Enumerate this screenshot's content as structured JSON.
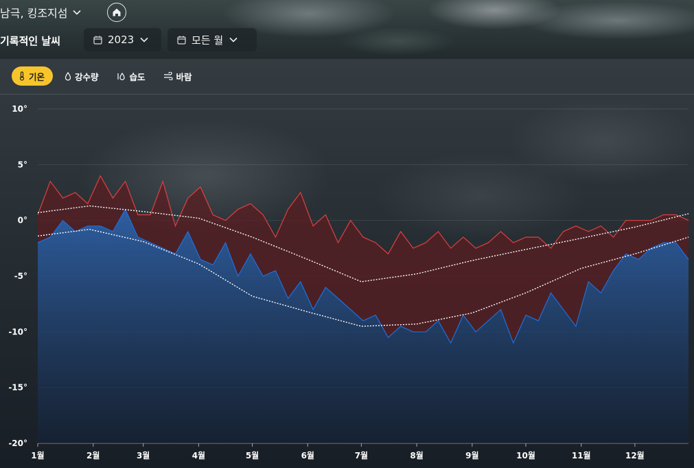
{
  "header": {
    "location": "남극, 킹조지섬",
    "page_title": "기록적인 날씨",
    "year_value": "2023",
    "month_value": "모든 월"
  },
  "tabs": [
    {
      "label": "기온",
      "icon": "thermometer-icon",
      "active": true
    },
    {
      "label": "강수량",
      "icon": "droplet-icon",
      "active": false
    },
    {
      "label": "습도",
      "icon": "humidity-icon",
      "active": false
    },
    {
      "label": "바람",
      "icon": "wind-icon",
      "active": false
    }
  ],
  "colors": {
    "accent": "#f7c52b",
    "max_line": "#e0403f",
    "min_line": "#1e6fe0",
    "min_fill": "#2b5fa8",
    "max_fill": "#5a1e22",
    "avg_line": "#ffffff"
  },
  "chart_data": {
    "type": "line",
    "ylim": [
      -20,
      10
    ],
    "yticks": [
      "10°",
      "5°",
      "0°",
      "-5°",
      "-10°",
      "-15°",
      "-20°"
    ],
    "ytick_values": [
      10,
      5,
      0,
      -5,
      -10,
      -15,
      -20
    ],
    "months": [
      "1월",
      "2월",
      "3월",
      "4월",
      "5월",
      "6월",
      "7월",
      "8월",
      "9월",
      "10월",
      "11월",
      "12월"
    ],
    "x_unit": "day of year 2023",
    "series": [
      {
        "key": "max",
        "style": "solid-red",
        "x": [
          1,
          8,
          15,
          22,
          29,
          36,
          43,
          50,
          57,
          64,
          71,
          78,
          85,
          92,
          99,
          106,
          113,
          120,
          127,
          134,
          141,
          148,
          155,
          162,
          169,
          176,
          183,
          190,
          197,
          204,
          211,
          218,
          225,
          232,
          239,
          246,
          253,
          260,
          267,
          274,
          281,
          288,
          295,
          302,
          309,
          316,
          323,
          330,
          337,
          344,
          351,
          358,
          365
        ],
        "values": [
          0.5,
          3.5,
          2.0,
          2.5,
          1.5,
          4.0,
          2.0,
          3.5,
          0.5,
          0.5,
          3.5,
          -0.5,
          2.0,
          3.0,
          0.5,
          0.0,
          1.0,
          1.5,
          0.5,
          -1.5,
          1.0,
          2.5,
          -0.5,
          0.5,
          -2.0,
          0.0,
          -1.5,
          -2.0,
          -3.0,
          -1.0,
          -2.5,
          -2.0,
          -1.0,
          -2.5,
          -1.5,
          -2.5,
          -2.0,
          -1.0,
          -2.0,
          -1.5,
          -1.5,
          -2.5,
          -1.0,
          -0.5,
          -1.0,
          -0.5,
          -1.5,
          0.0,
          0.0,
          0.0,
          0.5,
          0.5,
          0.0
        ]
      },
      {
        "key": "min",
        "style": "solid-blue",
        "x": [
          1,
          8,
          15,
          22,
          29,
          36,
          43,
          50,
          57,
          64,
          71,
          78,
          85,
          92,
          99,
          106,
          113,
          120,
          127,
          134,
          141,
          148,
          155,
          162,
          169,
          176,
          183,
          190,
          197,
          204,
          211,
          218,
          225,
          232,
          239,
          246,
          253,
          260,
          267,
          274,
          281,
          288,
          295,
          302,
          309,
          316,
          323,
          330,
          337,
          344,
          351,
          358,
          365
        ],
        "values": [
          -2.0,
          -1.5,
          0.0,
          -1.0,
          -0.5,
          -0.5,
          -1.0,
          1.0,
          -1.5,
          -2.0,
          -2.5,
          -3.0,
          -1.0,
          -3.5,
          -4.0,
          -2.0,
          -5.0,
          -3.0,
          -5.0,
          -4.5,
          -7.0,
          -5.5,
          -8.0,
          -6.0,
          -7.0,
          -8.0,
          -9.0,
          -8.5,
          -10.5,
          -9.5,
          -10.0,
          -10.0,
          -9.0,
          -11.0,
          -8.5,
          -10.0,
          -9.0,
          -8.0,
          -11.0,
          -8.5,
          -9.0,
          -6.5,
          -8.0,
          -9.5,
          -5.5,
          -6.5,
          -4.5,
          -3.0,
          -3.5,
          -2.5,
          -2.0,
          -2.0,
          -3.5
        ]
      },
      {
        "key": "avg_max",
        "style": "dotted-white",
        "x": [
          1,
          30,
          60,
          91,
          121,
          152,
          182,
          213,
          244,
          274,
          305,
          335,
          365
        ],
        "values": [
          0.7,
          1.3,
          0.8,
          0.2,
          -1.5,
          -3.5,
          -5.5,
          -4.8,
          -3.6,
          -2.6,
          -1.6,
          -0.6,
          0.6
        ]
      },
      {
        "key": "avg_min",
        "style": "dotted-white",
        "x": [
          1,
          30,
          60,
          91,
          121,
          152,
          182,
          213,
          244,
          274,
          305,
          335,
          365
        ],
        "values": [
          -1.4,
          -0.8,
          -1.9,
          -3.9,
          -6.8,
          -8.2,
          -9.5,
          -9.3,
          -8.3,
          -6.5,
          -4.3,
          -3.0,
          -1.5
        ]
      }
    ]
  }
}
